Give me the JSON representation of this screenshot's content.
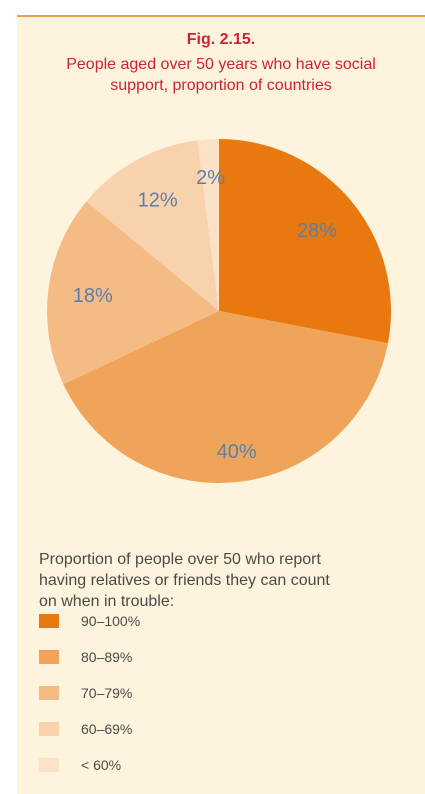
{
  "figure": {
    "label": "Fig. 2.15.",
    "title_line1": "People aged over 50 years who have social",
    "title_line2": "support, proportion of countries"
  },
  "chart_data": {
    "type": "pie",
    "title": "People aged over 50 years who have social support, proportion of countries",
    "slices": [
      {
        "category": "90–100%",
        "value": 28,
        "label": "28%",
        "color": "#e9780f"
      },
      {
        "category": "80–89%",
        "value": 40,
        "label": "40%",
        "color": "#f0a45a"
      },
      {
        "category": "70–79%",
        "value": 18,
        "label": "18%",
        "color": "#f4bb85"
      },
      {
        "category": "60–69%",
        "value": 12,
        "label": "12%",
        "color": "#f8d2ad"
      },
      {
        "category": "< 60%",
        "value": 2,
        "label": "2%",
        "color": "#fbe2c6"
      }
    ],
    "label_color": "#5b7fa8",
    "legend_title_line1": "Proportion of people over 50 who report",
    "legend_title_line2": "having relatives or friends they can count",
    "legend_title_line3": "on when in trouble:",
    "legend_placement": "bottom"
  }
}
